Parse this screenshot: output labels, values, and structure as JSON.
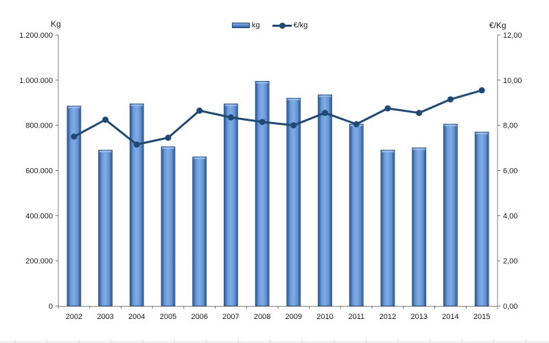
{
  "page": {
    "background": "#ffffff"
  },
  "legend": {
    "kg_label": "kg",
    "eur_label": "€/kg"
  },
  "axes": {
    "left_title": "Kg",
    "right_title": "€/Kg",
    "left_tick_labels": [
      "1.200.000",
      "1.000.000",
      "800.000",
      "600.000",
      "400.000",
      "200.000",
      "0"
    ],
    "right_tick_labels": [
      "12,00",
      "10,00",
      "8,00",
      "6,00",
      "4,00",
      "2,00",
      "0,00"
    ]
  },
  "chart_data": {
    "type": "combo",
    "categories": [
      "2002",
      "2003",
      "2004",
      "2005",
      "2006",
      "2007",
      "2008",
      "2009",
      "2010",
      "2011",
      "2012",
      "2013",
      "2014",
      "2015"
    ],
    "series": [
      {
        "name": "kg",
        "type": "bar",
        "axis": "left",
        "values": [
          885000,
          690000,
          895000,
          705000,
          660000,
          895000,
          995000,
          920000,
          935000,
          805000,
          690000,
          700000,
          805000,
          770000
        ],
        "color": "#5b8ed6"
      },
      {
        "name": "€/kg",
        "type": "line",
        "axis": "right",
        "values": [
          7.5,
          8.25,
          7.15,
          7.45,
          8.65,
          8.35,
          8.15,
          8.0,
          8.55,
          8.05,
          8.75,
          8.55,
          9.15,
          9.55
        ],
        "color": "#1f4873"
      }
    ],
    "left_axis": {
      "title": "Kg",
      "min": 0,
      "max": 1200000,
      "step": 200000,
      "tick_labels": [
        "0",
        "200.000",
        "400.000",
        "600.000",
        "800.000",
        "1.000.000",
        "1.200.000"
      ]
    },
    "right_axis": {
      "title": "€/Kg",
      "min": 0,
      "max": 12,
      "step": 2,
      "tick_labels": [
        "0,00",
        "2,00",
        "4,00",
        "6,00",
        "8,00",
        "10,00",
        "12,00"
      ]
    },
    "legend_position": "top-center",
    "grid": false,
    "title": "",
    "xlabel": "",
    "ylabel_left": "Kg",
    "ylabel_right": "€/Kg"
  },
  "style": {
    "bar_fill_light": "#82abe5",
    "bar_fill_mid": "#5b8ed6",
    "bar_fill_dark": "#2e5a97",
    "bar_stroke": "#24486e",
    "line_color": "#1f4873",
    "axis_line_color": "#7f7f7f",
    "tick_color": "#6e6e6e",
    "text_color": "#1a1a1a",
    "footer_tick_color": "#c9c9c9"
  }
}
